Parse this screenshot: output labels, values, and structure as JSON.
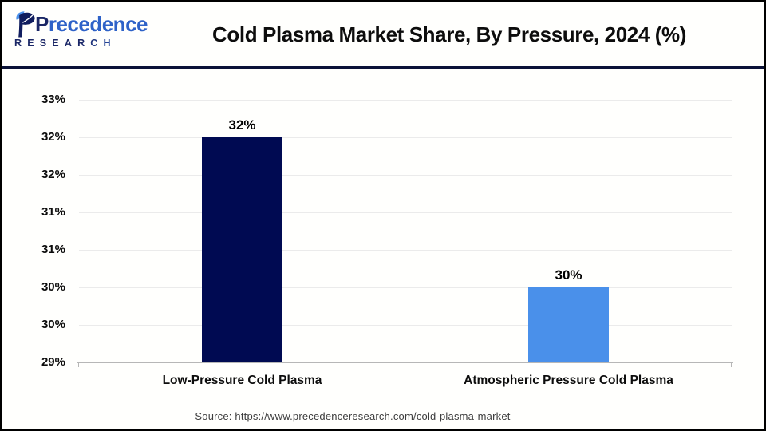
{
  "header": {
    "brand": {
      "first_letter": "P",
      "name_rest": "recedence",
      "subtitle": "RESEARCH",
      "navy": "#1b2766",
      "blue": "#2e62c8"
    },
    "title": "Cold Plasma Market Share, By Pressure, 2024 (%)"
  },
  "footer": {
    "source": "Source: https://www.precedenceresearch.com/cold-plasma-market"
  },
  "chart_data": {
    "type": "bar",
    "title": "Cold Plasma Market Share, By Pressure, 2024 (%)",
    "categories": [
      "Low-Pressure Cold Plasma",
      "Atmospheric Pressure Cold Plasma"
    ],
    "values": [
      32,
      30
    ],
    "data_labels": [
      "32%",
      "30%"
    ],
    "bar_colors": [
      "#000a52",
      "#4a90ea"
    ],
    "ylim": [
      29,
      32.5
    ],
    "y_ticks": [
      29,
      29.5,
      30,
      30.5,
      31,
      31.5,
      32,
      32.5
    ],
    "y_tick_labels": [
      "29%",
      "30%",
      "30%",
      "31%",
      "31%",
      "32%",
      "32%",
      "33%"
    ],
    "grid": true,
    "legend": false,
    "xlabel": "",
    "ylabel": "",
    "gridline_color": "#ebebeb",
    "axis_color": "#b7b7b7"
  }
}
